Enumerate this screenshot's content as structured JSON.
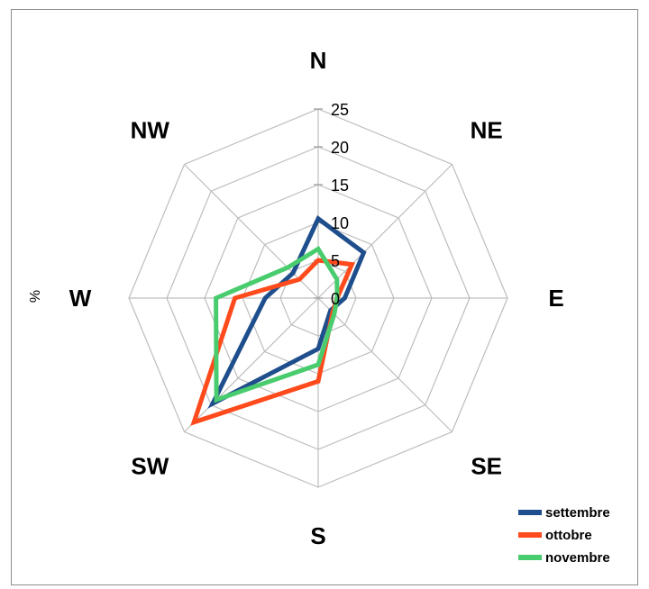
{
  "chart_data": {
    "type": "radar",
    "directions": [
      "N",
      "NE",
      "E",
      "SE",
      "S",
      "SW",
      "W",
      "NW"
    ],
    "axis_unit": "%",
    "rmin": 0,
    "rmax": 25,
    "ticks": [
      0,
      5,
      10,
      15,
      20,
      25
    ],
    "grid": true,
    "legend_position": "bottom-right",
    "series": [
      {
        "name": "settembre",
        "color": "#1f4e8c",
        "values": [
          10.5,
          8.5,
          3.5,
          2.3,
          6.7,
          19.7,
          7.0,
          4.7
        ]
      },
      {
        "name": "ottobre",
        "color": "#ff4a1c",
        "values": [
          5.0,
          6.3,
          2.5,
          2.7,
          11.0,
          23.2,
          11.0,
          3.5
        ]
      },
      {
        "name": "novembre",
        "color": "#49cc6e",
        "values": [
          6.5,
          3.5,
          2.5,
          3.0,
          8.8,
          19.0,
          13.5,
          5.7
        ]
      }
    ]
  }
}
